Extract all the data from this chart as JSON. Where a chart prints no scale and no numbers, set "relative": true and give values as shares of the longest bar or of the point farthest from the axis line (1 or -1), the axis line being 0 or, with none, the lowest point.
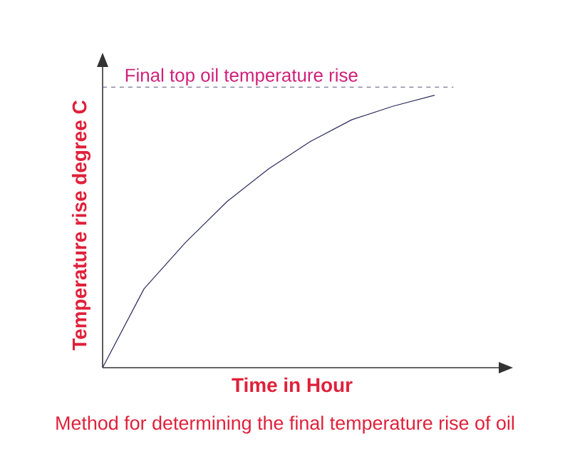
{
  "chart_data": {
    "type": "line",
    "title": "Method for determining the final temperature rise of oil",
    "xlabel": "Time in Hour",
    "ylabel": "Temperature rise degree C",
    "relative": true,
    "categories": [
      null,
      null,
      null,
      null,
      null,
      null,
      null,
      null,
      null
    ],
    "series": [
      {
        "color": "#2b2b5e",
        "values": [
          0,
          0.29,
          0.46,
          0.61,
          0.73,
          0.83,
          0.91,
          0.96,
          1.0
        ]
      }
    ],
    "ref_lines": [
      {
        "axis": "y",
        "value": 1.03,
        "label": "Final top oil temperature rise",
        "color": "#55557a",
        "line_style": "dashed"
      }
    ],
    "marker": "none",
    "line_style": "solid"
  }
}
